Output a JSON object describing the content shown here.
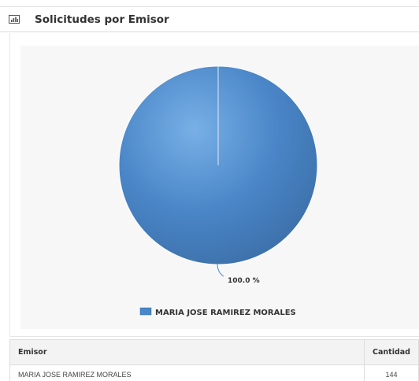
{
  "panel": {
    "title": "Solicitudes por Emisor",
    "icon": "bar-chart-icon"
  },
  "chart_data": {
    "type": "pie",
    "slices": [
      {
        "name": "MARIA JOSE RAMIREZ MORALES",
        "value": 100.0,
        "label": "100.0 %"
      }
    ],
    "legend": [
      "MARIA JOSE RAMIREZ MORALES"
    ],
    "legend_position": "bottom-center",
    "colors": {
      "slice": "#4a86c8",
      "slice_light": "#78b0e6",
      "slice_dark": "#3c6fa8"
    }
  },
  "table": {
    "headers": {
      "emisor": "Emisor",
      "cantidad": "Cantidad"
    },
    "rows": [
      {
        "emisor": "MARIA JOSE RAMIREZ MORALES",
        "cantidad": "144"
      }
    ]
  }
}
